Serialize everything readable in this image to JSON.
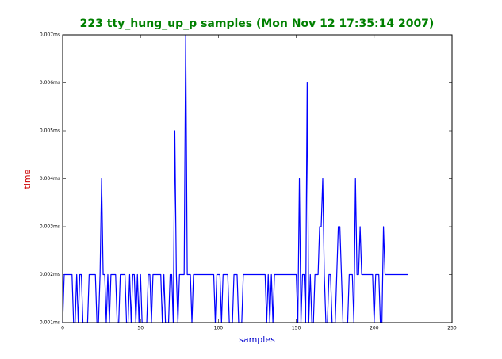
{
  "chart_data": {
    "type": "line",
    "title": "223 tty_hung_up_p samples (Mon Nov 12 17:35:14 2007)",
    "xlabel": "samples",
    "ylabel": "time",
    "color": "#0000ff",
    "x": [
      0,
      1,
      2,
      3,
      4,
      5,
      6,
      7,
      8,
      9,
      10,
      11,
      12,
      13,
      14,
      15,
      16,
      17,
      18,
      19,
      20,
      21,
      22,
      23,
      24,
      25,
      26,
      27,
      28,
      29,
      30,
      31,
      32,
      33,
      34,
      35,
      36,
      37,
      38,
      39,
      40,
      41,
      42,
      43,
      44,
      45,
      46,
      47,
      48,
      49,
      50,
      51,
      52,
      53,
      54,
      55,
      56,
      57,
      58,
      59,
      60,
      61,
      62,
      63,
      64,
      65,
      66,
      67,
      68,
      69,
      70,
      71,
      72,
      73,
      74,
      75,
      76,
      77,
      78,
      79,
      80,
      81,
      82,
      83,
      84,
      85,
      86,
      87,
      88,
      89,
      90,
      91,
      92,
      93,
      94,
      95,
      96,
      97,
      98,
      99,
      100,
      101,
      102,
      103,
      104,
      105,
      106,
      107,
      108,
      109,
      110,
      111,
      112,
      113,
      114,
      115,
      116,
      117,
      118,
      119,
      120,
      121,
      122,
      123,
      124,
      125,
      126,
      127,
      128,
      129,
      130,
      131,
      132,
      133,
      134,
      135,
      136,
      137,
      138,
      139,
      140,
      141,
      142,
      143,
      144,
      145,
      146,
      147,
      148,
      149,
      150,
      151,
      152,
      153,
      154,
      155,
      156,
      157,
      158,
      159,
      160,
      161,
      162,
      163,
      164,
      165,
      166,
      167,
      168,
      169,
      170,
      171,
      172,
      173,
      174,
      175,
      176,
      177,
      178,
      179,
      180,
      181,
      182,
      183,
      184,
      185,
      186,
      187,
      188,
      189,
      190,
      191,
      192,
      193,
      194,
      195,
      196,
      197,
      198,
      199,
      200,
      201,
      202,
      203,
      204,
      205,
      206,
      207,
      208,
      209,
      210,
      211,
      212,
      213,
      214,
      215,
      216,
      217,
      218,
      219,
      220,
      221,
      222
    ],
    "values": [
      0.001,
      0.002,
      0.002,
      0.002,
      0.002,
      0.002,
      0.002,
      0.001,
      0.001,
      0.002,
      0.001,
      0.002,
      0.002,
      0.001,
      0.001,
      0.001,
      0.001,
      0.002,
      0.002,
      0.002,
      0.002,
      0.002,
      0.001,
      0.001,
      0.002,
      0.004,
      0.002,
      0.002,
      0.001,
      0.002,
      0.001,
      0.002,
      0.002,
      0.002,
      0.002,
      0.001,
      0.001,
      0.002,
      0.002,
      0.002,
      0.002,
      0.001,
      0.001,
      0.002,
      0.001,
      0.002,
      0.002,
      0.001,
      0.002,
      0.001,
      0.002,
      0.001,
      0.001,
      0.001,
      0.001,
      0.002,
      0.002,
      0.001,
      0.002,
      0.002,
      0.002,
      0.002,
      0.002,
      0.002,
      0.001,
      0.002,
      0.001,
      0.001,
      0.001,
      0.002,
      0.002,
      0.001,
      0.005,
      0.002,
      0.001,
      0.002,
      0.002,
      0.002,
      0.002,
      0.007,
      0.002,
      0.002,
      0.002,
      0.001,
      0.002,
      0.002,
      0.002,
      0.002,
      0.002,
      0.002,
      0.002,
      0.002,
      0.002,
      0.002,
      0.002,
      0.002,
      0.002,
      0.002,
      0.001,
      0.002,
      0.002,
      0.002,
      0.001,
      0.002,
      0.002,
      0.002,
      0.002,
      0.001,
      0.001,
      0.001,
      0.002,
      0.002,
      0.002,
      0.001,
      0.001,
      0.001,
      0.002,
      0.002,
      0.002,
      0.002,
      0.002,
      0.002,
      0.002,
      0.002,
      0.002,
      0.002,
      0.002,
      0.002,
      0.002,
      0.002,
      0.002,
      0.001,
      0.002,
      0.001,
      0.002,
      0.001,
      0.002,
      0.002,
      0.002,
      0.002,
      0.002,
      0.002,
      0.002,
      0.002,
      0.002,
      0.002,
      0.002,
      0.002,
      0.002,
      0.002,
      0.002,
      0.001,
      0.004,
      0.001,
      0.002,
      0.002,
      0.001,
      0.006,
      0.001,
      0.002,
      0.001,
      0.001,
      0.002,
      0.002,
      0.002,
      0.003,
      0.003,
      0.004,
      0.002,
      0.001,
      0.001,
      0.002,
      0.002,
      0.001,
      0.001,
      0.001,
      0.002,
      0.003,
      0.003,
      0.002,
      0.001,
      0.001,
      0.001,
      0.001,
      0.002,
      0.002,
      0.002,
      0.001,
      0.004,
      0.002,
      0.002,
      0.003,
      0.002,
      0.002,
      0.002,
      0.002,
      0.002,
      0.002,
      0.002,
      0.002,
      0.001,
      0.002,
      0.002,
      0.002,
      0.001,
      0.001,
      0.003,
      0.002,
      0.002,
      0.002,
      0.002,
      0.002,
      0.002,
      0.002,
      0.002,
      0.002,
      0.002,
      0.002,
      0.002,
      0.002,
      0.002,
      0.002,
      0.002
    ],
    "xlim": [
      0,
      250
    ],
    "xticks": [
      0,
      50,
      100,
      150,
      200,
      250
    ],
    "ylim": [
      0.001,
      0.007
    ],
    "yticks": [
      {
        "value": 0.001,
        "label": "0.001ms"
      },
      {
        "value": 0.002,
        "label": "0.002ms"
      },
      {
        "value": 0.003,
        "label": "0.003ms"
      },
      {
        "value": 0.004,
        "label": "0.004ms"
      },
      {
        "value": 0.005,
        "label": "0.005ms"
      },
      {
        "value": 0.006,
        "label": "0.006ms"
      },
      {
        "value": 0.007,
        "label": "0.007ms"
      }
    ],
    "grid": false
  }
}
